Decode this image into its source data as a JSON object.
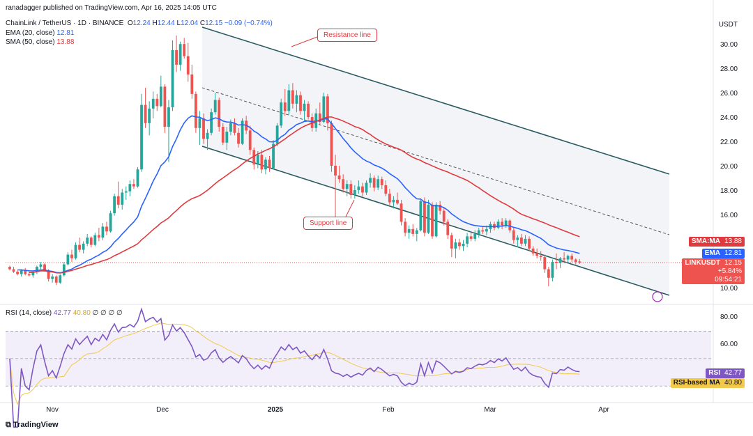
{
  "header": {
    "publisher": "ranadagger published on TradingView.com, Apr 16, 2025 14:05 UTC",
    "symbol": "ChainLink / TetherUS · 1D · BINANCE",
    "ohlc": {
      "O": "12.24",
      "H": "12.44",
      "L": "12.04",
      "C": "12.15",
      "chg": "−0.09 (−0.74%)"
    },
    "ema_label": "EMA (20, close)",
    "ema_value": "12.81",
    "sma_label": "SMA (50, close)",
    "sma_value": "13.88",
    "rsi_label": "RSI (14, close)",
    "rsi_value": "42.77",
    "rsi_ma_value": "40.80",
    "rsi_extra": "∅ ∅ ∅ ∅"
  },
  "axis": {
    "currency": "USDT",
    "price_ticks": [
      "30.00",
      "28.00",
      "26.00",
      "24.00",
      "22.00",
      "20.00",
      "18.00",
      "16.00",
      "14.00",
      "12.00",
      "10.00"
    ],
    "rsi_ticks": [
      "80.00",
      "60.00",
      "40.00"
    ],
    "x_ticks": [
      "Nov",
      "Dec",
      "2025",
      "Feb",
      "Mar",
      "Apr"
    ]
  },
  "tags": {
    "sma": {
      "name": "SMA:MA",
      "value": "13.88"
    },
    "ema": {
      "name": "EMA",
      "value": "12.81"
    },
    "price": {
      "name": "LINKUSDT",
      "value": "12.15",
      "change": "+5.84%",
      "timer": "09:54:21"
    },
    "rsi": {
      "name": "RSI",
      "value": "42.77"
    },
    "rsi_ma": {
      "name": "RSI-based MA",
      "value": "40.80"
    }
  },
  "annotations": {
    "resistance": "Resistance line",
    "support": "Support line"
  },
  "brand": "TradingView",
  "colors": {
    "up": "#26a69a",
    "down": "#ef5350",
    "ema": "#2962ff",
    "sma": "#e0393e",
    "rsi": "#7e57c2",
    "rsi_ma": "#f2c94c",
    "channel": "#2a5b62"
  },
  "chart_data": {
    "type": "candlestick",
    "x_ticks": [
      "Nov",
      "Dec",
      "2025",
      "Feb",
      "Mar",
      "Apr"
    ],
    "ylim": [
      9.0,
      32.0
    ],
    "candles": [
      [
        11.8,
        11.9,
        11.5,
        11.6
      ],
      [
        11.6,
        11.8,
        11.3,
        11.4
      ],
      [
        11.4,
        11.5,
        11.1,
        11.2
      ],
      [
        11.2,
        11.6,
        11.0,
        11.5
      ],
      [
        11.5,
        11.7,
        11.1,
        11.2
      ],
      [
        11.2,
        11.4,
        11.0,
        11.1
      ],
      [
        11.1,
        11.5,
        10.9,
        11.4
      ],
      [
        11.4,
        11.9,
        11.2,
        11.8
      ],
      [
        11.8,
        12.2,
        11.6,
        12.0
      ],
      [
        12.0,
        12.1,
        11.4,
        11.5
      ],
      [
        11.5,
        11.6,
        10.6,
        10.8
      ],
      [
        10.8,
        11.2,
        10.5,
        11.0
      ],
      [
        11.0,
        11.1,
        10.3,
        10.5
      ],
      [
        10.5,
        11.2,
        10.4,
        11.1
      ],
      [
        11.1,
        12.2,
        11.0,
        12.0
      ],
      [
        12.0,
        13.0,
        11.9,
        12.8
      ],
      [
        12.8,
        13.2,
        12.2,
        12.5
      ],
      [
        12.5,
        13.8,
        12.4,
        13.6
      ],
      [
        13.6,
        14.2,
        13.0,
        13.2
      ],
      [
        13.2,
        13.9,
        12.9,
        13.7
      ],
      [
        13.7,
        14.5,
        13.5,
        14.2
      ],
      [
        14.2,
        14.3,
        13.4,
        13.6
      ],
      [
        13.6,
        14.6,
        13.5,
        14.4
      ],
      [
        14.4,
        15.0,
        13.9,
        14.2
      ],
      [
        14.2,
        15.4,
        14.0,
        15.1
      ],
      [
        15.1,
        15.5,
        14.4,
        14.7
      ],
      [
        14.7,
        16.4,
        14.6,
        16.2
      ],
      [
        16.2,
        17.8,
        16.0,
        17.6
      ],
      [
        17.6,
        18.8,
        16.6,
        16.9
      ],
      [
        16.9,
        18.2,
        16.5,
        17.9
      ],
      [
        17.9,
        18.4,
        17.3,
        18.0
      ],
      [
        18.0,
        18.9,
        17.6,
        18.6
      ],
      [
        18.6,
        19.0,
        18.2,
        18.4
      ],
      [
        18.4,
        20.0,
        18.3,
        19.8
      ],
      [
        19.8,
        26.0,
        19.6,
        25.1
      ],
      [
        25.1,
        26.5,
        23.2,
        23.6
      ],
      [
        23.6,
        25.4,
        22.6,
        24.8
      ],
      [
        24.8,
        26.2,
        24.0,
        25.6
      ],
      [
        25.6,
        26.0,
        24.6,
        25.0
      ],
      [
        25.0,
        27.5,
        24.9,
        26.6
      ],
      [
        26.6,
        26.8,
        22.8,
        23.3
      ],
      [
        23.3,
        25.5,
        20.4,
        24.9
      ],
      [
        24.9,
        30.4,
        24.6,
        29.6
      ],
      [
        29.6,
        30.8,
        27.8,
        28.4
      ],
      [
        28.4,
        30.3,
        27.9,
        30.1
      ],
      [
        30.1,
        30.6,
        28.9,
        29.1
      ],
      [
        29.1,
        30.2,
        27.0,
        27.6
      ],
      [
        27.6,
        28.4,
        25.6,
        26.0
      ],
      [
        26.0,
        26.2,
        22.8,
        23.2
      ],
      [
        23.2,
        24.6,
        21.8,
        24.0
      ],
      [
        24.0,
        24.4,
        21.9,
        22.3
      ],
      [
        22.3,
        23.1,
        21.4,
        22.8
      ],
      [
        22.8,
        24.8,
        22.6,
        24.5
      ],
      [
        24.5,
        26.1,
        24.3,
        25.5
      ],
      [
        25.5,
        25.7,
        22.9,
        23.3
      ],
      [
        23.3,
        23.6,
        21.8,
        22.0
      ],
      [
        22.0,
        23.3,
        21.4,
        22.9
      ],
      [
        22.9,
        23.9,
        22.6,
        23.6
      ],
      [
        23.6,
        24.0,
        22.6,
        22.8
      ],
      [
        22.8,
        23.2,
        21.6,
        21.9
      ],
      [
        21.9,
        24.0,
        21.8,
        23.8
      ],
      [
        23.8,
        24.2,
        22.7,
        23.0
      ],
      [
        23.0,
        23.4,
        21.0,
        21.4
      ],
      [
        21.4,
        21.6,
        19.8,
        20.2
      ],
      [
        20.2,
        21.3,
        19.9,
        21.0
      ],
      [
        21.0,
        21.4,
        19.5,
        19.8
      ],
      [
        19.8,
        20.8,
        19.4,
        20.6
      ],
      [
        20.6,
        20.9,
        19.6,
        19.9
      ],
      [
        19.9,
        22.2,
        19.8,
        21.9
      ],
      [
        21.9,
        23.6,
        21.7,
        23.4
      ],
      [
        23.4,
        25.6,
        23.2,
        25.3
      ],
      [
        25.3,
        26.4,
        24.2,
        24.6
      ],
      [
        24.6,
        26.8,
        24.3,
        26.3
      ],
      [
        26.3,
        26.9,
        24.8,
        25.2
      ],
      [
        25.2,
        26.3,
        24.5,
        25.9
      ],
      [
        25.9,
        26.2,
        24.3,
        24.6
      ],
      [
        24.6,
        25.5,
        23.8,
        25.2
      ],
      [
        25.2,
        25.4,
        23.9,
        24.1
      ],
      [
        24.1,
        24.4,
        22.9,
        23.2
      ],
      [
        23.2,
        24.8,
        22.9,
        24.4
      ],
      [
        24.4,
        25.3,
        23.5,
        23.7
      ],
      [
        23.7,
        26.1,
        23.6,
        25.8
      ],
      [
        25.8,
        26.0,
        23.0,
        23.6
      ],
      [
        23.6,
        23.8,
        19.6,
        20.1
      ],
      [
        20.1,
        21.0,
        15.6,
        19.3
      ],
      [
        19.3,
        20.1,
        18.7,
        19.0
      ],
      [
        19.0,
        19.4,
        17.9,
        18.2
      ],
      [
        18.2,
        18.9,
        17.6,
        18.6
      ],
      [
        18.6,
        18.9,
        17.4,
        17.7
      ],
      [
        17.7,
        18.5,
        17.4,
        18.1
      ],
      [
        18.1,
        18.9,
        17.8,
        18.4
      ],
      [
        18.4,
        18.7,
        17.6,
        17.9
      ],
      [
        17.9,
        18.9,
        17.7,
        18.7
      ],
      [
        18.7,
        19.5,
        18.3,
        19.1
      ],
      [
        19.1,
        19.3,
        18.0,
        18.3
      ],
      [
        18.3,
        19.3,
        18.1,
        19.0
      ],
      [
        19.0,
        19.2,
        18.2,
        18.5
      ],
      [
        18.5,
        18.9,
        17.6,
        17.8
      ],
      [
        17.8,
        18.2,
        16.9,
        17.1
      ],
      [
        17.1,
        17.6,
        16.6,
        17.3
      ],
      [
        17.3,
        17.9,
        16.9,
        17.0
      ],
      [
        17.0,
        17.3,
        15.2,
        15.5
      ],
      [
        15.5,
        15.8,
        14.3,
        14.6
      ],
      [
        14.6,
        15.2,
        14.1,
        14.9
      ],
      [
        14.9,
        15.3,
        14.3,
        14.5
      ],
      [
        14.5,
        15.0,
        13.9,
        14.8
      ],
      [
        14.8,
        17.4,
        14.7,
        17.2
      ],
      [
        17.2,
        17.5,
        14.3,
        14.6
      ],
      [
        14.6,
        17.3,
        14.5,
        16.9
      ],
      [
        16.9,
        17.1,
        14.1,
        14.3
      ],
      [
        14.3,
        17.1,
        14.2,
        16.9
      ],
      [
        16.9,
        17.2,
        16.1,
        16.4
      ],
      [
        16.4,
        16.7,
        15.2,
        15.5
      ],
      [
        15.5,
        15.7,
        14.1,
        14.4
      ],
      [
        14.4,
        14.6,
        12.6,
        13.3
      ],
      [
        13.3,
        14.1,
        12.5,
        13.8
      ],
      [
        13.8,
        14.1,
        13.2,
        13.5
      ],
      [
        13.5,
        14.0,
        13.1,
        13.7
      ],
      [
        13.7,
        14.6,
        13.4,
        14.3
      ],
      [
        14.3,
        14.7,
        13.9,
        14.1
      ],
      [
        14.1,
        14.8,
        13.9,
        14.5
      ],
      [
        14.5,
        15.0,
        14.2,
        14.8
      ],
      [
        14.8,
        15.1,
        14.5,
        14.7
      ],
      [
        14.7,
        15.2,
        14.4,
        14.9
      ],
      [
        14.9,
        15.5,
        14.6,
        15.3
      ],
      [
        15.3,
        15.5,
        14.8,
        15.0
      ],
      [
        15.0,
        15.7,
        14.9,
        15.5
      ],
      [
        15.5,
        15.8,
        14.9,
        15.2
      ],
      [
        15.2,
        15.8,
        15.0,
        15.6
      ],
      [
        15.6,
        15.7,
        14.6,
        14.8
      ],
      [
        14.8,
        15.0,
        13.7,
        14.0
      ],
      [
        14.0,
        14.4,
        13.4,
        14.2
      ],
      [
        14.2,
        14.5,
        13.5,
        13.7
      ],
      [
        13.7,
        14.4,
        13.5,
        14.1
      ],
      [
        14.1,
        14.3,
        13.1,
        13.3
      ],
      [
        13.3,
        13.5,
        12.7,
        12.9
      ],
      [
        12.9,
        13.3,
        12.5,
        12.7
      ],
      [
        12.7,
        13.1,
        12.3,
        12.6
      ],
      [
        12.6,
        12.8,
        11.3,
        11.6
      ],
      [
        11.6,
        11.8,
        10.2,
        10.9
      ],
      [
        10.9,
        12.4,
        10.6,
        12.2
      ],
      [
        12.2,
        12.9,
        11.6,
        12.1
      ],
      [
        12.1,
        12.6,
        11.7,
        12.5
      ],
      [
        12.5,
        13.0,
        12.1,
        12.4
      ],
      [
        12.4,
        12.8,
        12.1,
        12.7
      ],
      [
        12.7,
        12.9,
        12.2,
        12.4
      ],
      [
        12.4,
        12.5,
        12.0,
        12.2
      ],
      [
        12.24,
        12.44,
        12.04,
        12.15
      ]
    ],
    "ema20_end": 12.81,
    "sma50_end": 13.88,
    "rsi_last": 42.77,
    "rsi_ma_last": 40.8
  }
}
